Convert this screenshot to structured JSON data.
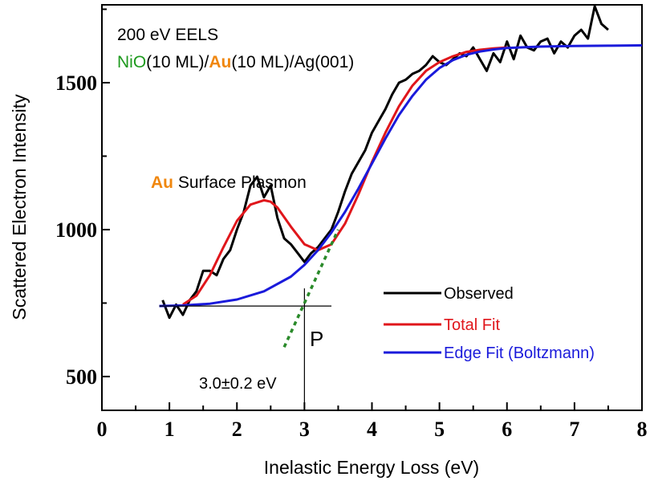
{
  "chart_data": {
    "type": "line",
    "xlabel": "Inelastic Energy Loss (eV)",
    "ylabel": "Scattered Electron Intensity",
    "xlim": [
      0,
      8
    ],
    "ylim": [
      385,
      1765
    ],
    "x_ticks": [
      "0",
      "1",
      "2",
      "3",
      "4",
      "5",
      "6",
      "7",
      "8"
    ],
    "y_ticks": [
      "500",
      "1000",
      "1500"
    ],
    "y_tick_values": [
      500,
      1000,
      1500
    ],
    "grid": false,
    "legend_position": "lower-right",
    "annotations": {
      "method": "200 eV EELS",
      "sample": {
        "part1": "NiO",
        "part2": "(10 ML)/",
        "part3": "Au",
        "part4": "(10 ML)/Ag(001)"
      },
      "plasmon": {
        "part1": "Au",
        "part2": " Surface Plasmon"
      },
      "point_label": "P",
      "onset_label": "3.0±0.2 eV"
    },
    "onset_x": 3.0,
    "tangent_line": {
      "x": [
        2.7,
        3.5
      ],
      "y": [
        600,
        1000
      ]
    },
    "baseline": {
      "x": [
        0.85,
        3.4
      ],
      "y": [
        740,
        740
      ]
    },
    "series": [
      {
        "name": "Observed",
        "color": "#000000",
        "x": [
          0.9,
          1.0,
          1.1,
          1.2,
          1.3,
          1.4,
          1.5,
          1.6,
          1.7,
          1.8,
          1.9,
          2.0,
          2.1,
          2.2,
          2.3,
          2.4,
          2.5,
          2.6,
          2.7,
          2.8,
          2.9,
          3.0,
          3.1,
          3.2,
          3.3,
          3.4,
          3.5,
          3.6,
          3.7,
          3.8,
          3.9,
          4.0,
          4.1,
          4.2,
          4.3,
          4.4,
          4.5,
          4.6,
          4.7,
          4.8,
          4.9,
          5.0,
          5.1,
          5.2,
          5.3,
          5.4,
          5.5,
          5.6,
          5.7,
          5.8,
          5.9,
          6.0,
          6.1,
          6.2,
          6.3,
          6.4,
          6.5,
          6.6,
          6.7,
          6.8,
          6.9,
          7.0,
          7.1,
          7.2,
          7.3,
          7.4,
          7.5
        ],
        "y": [
          760,
          700,
          745,
          710,
          760,
          790,
          860,
          860,
          845,
          900,
          930,
          1000,
          1060,
          1150,
          1180,
          1110,
          1150,
          1040,
          970,
          950,
          920,
          890,
          920,
          940,
          970,
          1000,
          1060,
          1130,
          1190,
          1230,
          1270,
          1330,
          1370,
          1410,
          1460,
          1500,
          1510,
          1530,
          1540,
          1560,
          1590,
          1570,
          1560,
          1580,
          1600,
          1590,
          1620,
          1580,
          1540,
          1600,
          1570,
          1640,
          1580,
          1660,
          1620,
          1610,
          1640,
          1650,
          1600,
          1640,
          1620,
          1660,
          1680,
          1650,
          1760,
          1700,
          1680
        ]
      },
      {
        "name": "Total Fit",
        "color": "#e0161b",
        "x": [
          1.2,
          1.4,
          1.6,
          1.8,
          2.0,
          2.2,
          2.4,
          2.5,
          2.6,
          2.8,
          3.0,
          3.2,
          3.4,
          3.6,
          3.8,
          4.0,
          4.2,
          4.4,
          4.6,
          4.8,
          5.0,
          5.2,
          5.4,
          5.6,
          5.8,
          6.0
        ],
        "y": [
          745,
          775,
          845,
          940,
          1030,
          1085,
          1100,
          1095,
          1075,
          1010,
          950,
          930,
          950,
          1020,
          1120,
          1230,
          1330,
          1420,
          1490,
          1540,
          1570,
          1590,
          1605,
          1612,
          1617,
          1620
        ]
      },
      {
        "name": "Edge Fit (Boltzmann)",
        "color": "#1a1adb",
        "x": [
          0.85,
          1.2,
          1.6,
          2.0,
          2.4,
          2.8,
          3.0,
          3.2,
          3.4,
          3.6,
          3.8,
          4.0,
          4.2,
          4.4,
          4.6,
          4.8,
          5.0,
          5.2,
          5.4,
          5.6,
          5.8,
          6.0,
          6.5,
          7.0,
          7.5,
          8.0
        ],
        "y": [
          740,
          742,
          748,
          762,
          790,
          840,
          880,
          930,
          990,
          1060,
          1140,
          1225,
          1310,
          1390,
          1455,
          1510,
          1550,
          1577,
          1595,
          1606,
          1613,
          1618,
          1623,
          1625,
          1626,
          1627
        ]
      }
    ]
  }
}
